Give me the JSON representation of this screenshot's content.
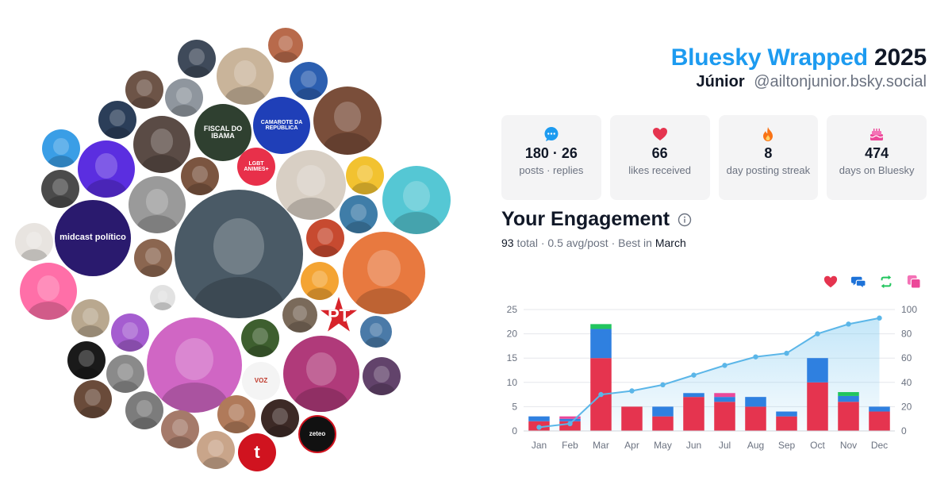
{
  "header": {
    "title_brand": "Bluesky Wrapped",
    "title_year": "2025",
    "user_name": "Júnior",
    "user_handle": "@ailtonjunior.bsky.social"
  },
  "stats": [
    {
      "icon": "speech-bubble-icon",
      "value": "180 · 26",
      "label": "posts · replies",
      "color": "#1d9bf0"
    },
    {
      "icon": "heart-icon",
      "value": "66",
      "label": "likes received",
      "color": "#e5344f"
    },
    {
      "icon": "flame-icon",
      "value": "8",
      "label": "day posting streak",
      "color": "#f97316"
    },
    {
      "icon": "birthday-cake-icon",
      "value": "474",
      "label": "days on Bluesky",
      "color": "#ec4899"
    }
  ],
  "engagement": {
    "title": "Your Engagement",
    "total_value": "93",
    "total_label": "total",
    "avg": "0.5 avg/post",
    "best_label": "Best in",
    "best_month": "March"
  },
  "legend": [
    {
      "icon": "heart-icon",
      "color": "#e5344f"
    },
    {
      "icon": "reply-icon",
      "color": "#1d72d8"
    },
    {
      "icon": "repost-icon",
      "color": "#22c55e"
    },
    {
      "icon": "quote-icon",
      "color": "#ec4899"
    }
  ],
  "avatars": [
    {
      "label": "",
      "color": "#3f4a5a"
    },
    {
      "label": "",
      "color": "#c9b49a"
    },
    {
      "label": "",
      "color": "#b86a4b"
    },
    {
      "label": "",
      "color": "#2c5fb0"
    },
    {
      "label": "",
      "color": "#6d5447"
    },
    {
      "label": "",
      "color": "#8f969e"
    },
    {
      "label": "CAMAROTE DA REPÚBLICA",
      "color": "#1f3fb8"
    },
    {
      "label": "",
      "color": "#7a4e3a"
    },
    {
      "label": "",
      "color": "#2b3e59"
    },
    {
      "label": "",
      "color": "#5a4b45"
    },
    {
      "label": "FISCAL DO IBAMA",
      "color": "#2f4030"
    },
    {
      "label": "",
      "color": "#3a9ee6"
    },
    {
      "label": "",
      "color": "#5b2ee0"
    },
    {
      "label": "",
      "color": "#7b5540"
    },
    {
      "label": "LGBT ANIMES+",
      "color": "#e8304a"
    },
    {
      "label": "",
      "color": "#d8cfc4"
    },
    {
      "label": "",
      "color": "#f2c230"
    },
    {
      "label": "",
      "color": "#4b4b4b"
    },
    {
      "label": "",
      "color": "#9a9a9a"
    },
    {
      "label": "midcast político",
      "color": "#2a1a6e"
    },
    {
      "label": "",
      "color": "#3f7da8"
    },
    {
      "label": "",
      "color": "#55c7d4"
    },
    {
      "label": "",
      "color": "#e8e4e0"
    },
    {
      "label": "",
      "color": "#8b6650"
    },
    {
      "label": "",
      "color": "#4a5a66"
    },
    {
      "label": "",
      "color": "#c74a30"
    },
    {
      "label": "",
      "color": "#e8793f"
    },
    {
      "label": "",
      "color": "#ff6fa8"
    },
    {
      "label": "",
      "color": "#e2e2e2"
    },
    {
      "label": "",
      "color": "#f4a433"
    },
    {
      "label": "",
      "color": "#7a6a5a"
    },
    {
      "label": "PT",
      "color": "#d7242b"
    },
    {
      "label": "",
      "color": "#b9a88f"
    },
    {
      "label": "",
      "color": "#a55dd0"
    },
    {
      "label": "",
      "color": "#d066c4"
    },
    {
      "label": "",
      "color": "#3e5f2f"
    },
    {
      "label": "",
      "color": "#4a7aa8"
    },
    {
      "label": "",
      "color": "#b03a7a"
    },
    {
      "label": "",
      "color": "#1a1a1a"
    },
    {
      "label": "",
      "color": "#62436b"
    },
    {
      "label": "",
      "color": "#8a8a8a"
    },
    {
      "label": "VOZ",
      "color": "#f4f4f4"
    },
    {
      "label": "",
      "color": "#6a4b3a"
    },
    {
      "label": "",
      "color": "#7c7c7c"
    },
    {
      "label": "",
      "color": "#b07a5a"
    },
    {
      "label": "",
      "color": "#a57a6a"
    },
    {
      "label": "",
      "color": "#3d2a26"
    },
    {
      "label": "zeteo",
      "color": "#111111"
    },
    {
      "label": "",
      "color": "#c9a58a"
    },
    {
      "label": "t",
      "color": "#d0131f"
    },
    {
      "label": "",
      "color": "#c45a1a"
    }
  ],
  "chart_data": {
    "type": "bar",
    "categories": [
      "Jan",
      "Feb",
      "Mar",
      "Apr",
      "May",
      "Jun",
      "Jul",
      "Aug",
      "Sep",
      "Oct",
      "Nov",
      "Dec"
    ],
    "series": [
      {
        "values": [
          2,
          2,
          15,
          5,
          3,
          7,
          6,
          5,
          3,
          10,
          6,
          4
        ],
        "color": "#e5344f"
      },
      {
        "values": [
          1,
          0.5,
          6,
          0,
          2,
          0.8,
          1,
          2,
          1,
          5,
          1.2,
          1
        ],
        "color": "#2f80e0"
      },
      {
        "values": [
          0,
          0,
          1,
          0,
          0,
          0,
          0,
          0,
          0,
          0,
          0.8,
          0
        ],
        "color": "#22c55e"
      },
      {
        "values": [
          0,
          0.5,
          0,
          0,
          0,
          0,
          0.8,
          0,
          0,
          0,
          0,
          0
        ],
        "color": "#ec4899"
      }
    ],
    "line": {
      "values": [
        3,
        6,
        30,
        33,
        38,
        46,
        54,
        61,
        64,
        80,
        88,
        93
      ],
      "color": "#5bb6e8"
    },
    "ylim_left": [
      0,
      25
    ],
    "ylim_right": [
      0,
      100
    ],
    "yticks_left": [
      "0",
      "5",
      "10",
      "15",
      "20",
      "25"
    ],
    "yticks_right": [
      "0",
      "20",
      "40",
      "60",
      "80",
      "100"
    ],
    "grid": true,
    "legend_placement": "top-right"
  }
}
